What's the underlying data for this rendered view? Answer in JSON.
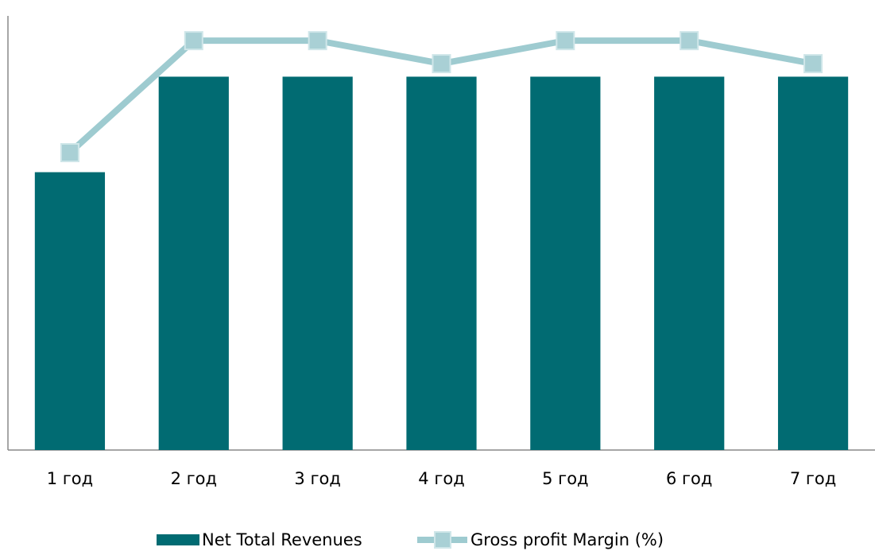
{
  "chart_data": {
    "type": "bar",
    "categories": [
      "1 год",
      "2 год",
      "3 год",
      "4 год",
      "5 год",
      "6 год",
      "7 год"
    ],
    "series": [
      {
        "name": "Net Total Revenues",
        "type": "bar",
        "color": "#016b72",
        "values": [
          64,
          86,
          86,
          86,
          86,
          86,
          86
        ]
      },
      {
        "name": "Gross profit Margin (%)",
        "type": "line",
        "color": "#9ecbd0",
        "values": [
          68.5,
          94.3,
          94.3,
          89,
          94.3,
          94.3,
          89
        ]
      }
    ],
    "ylim": [
      0,
      100
    ],
    "legend": "bottom"
  }
}
